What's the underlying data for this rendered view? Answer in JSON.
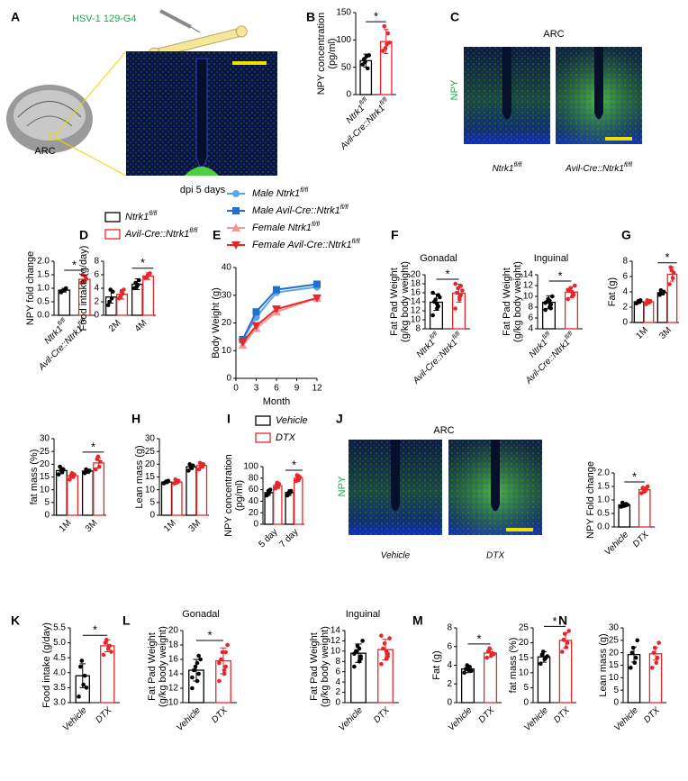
{
  "images": [
    {
      "panel": "A",
      "label": "HSV-1 129-G4",
      "region": "ARC",
      "caption": "dpi 5 days"
    },
    {
      "panel": "C",
      "title": "ARC",
      "stain": "NPY",
      "captions": [
        "Ntrk1fl/fl",
        "Avil-Cre::Ntrk1fl/fl"
      ]
    },
    {
      "panel": "J",
      "title": "ARC",
      "stain": "NPY",
      "captions": [
        "Vehicle",
        "DTX"
      ]
    }
  ],
  "chart_data": [
    {
      "type": "bar",
      "panel": "B",
      "ylabel": [
        "NPY concentration",
        "(pg/ml)"
      ],
      "categories": [
        "Ntrk1fl/fl",
        "Avil-Cre::Ntrk1fl/fl"
      ],
      "series": [
        {
          "colors": [
            "#000000",
            "#e8262a"
          ],
          "values": [
            62,
            97
          ],
          "errors": [
            12,
            22
          ],
          "points": [
            [
              55,
              70,
              48,
              65,
              60,
              72
            ],
            [
              80,
              92,
              112,
              125,
              85,
              95
            ]
          ]
        }
      ],
      "ylim": [
        0,
        150
      ],
      "yticks": [
        0,
        50,
        100,
        150
      ],
      "significance": "*"
    },
    {
      "type": "bar",
      "ylabel": [
        "NPY fold change"
      ],
      "categories": [
        "Ntrk1fl/fl",
        "Avil-Cre::Ntrk1fl/fl"
      ],
      "series": [
        {
          "colors": [
            "#000000",
            "#e8262a"
          ],
          "values": [
            0.93,
            1.33
          ],
          "errors": [
            0.07,
            0.15
          ],
          "points": [
            [
              0.85,
              0.95,
              1.0,
              0.9,
              0.92
            ],
            [
              1.2,
              1.45,
              1.35,
              1.5,
              1.25
            ]
          ]
        }
      ],
      "ylim": [
        0,
        2
      ],
      "yticks": [
        {
          "value": 0,
          "label": "0.0"
        },
        0.5,
        {
          "value": 1,
          "label": "1.0"
        },
        1.5,
        {
          "value": 2,
          "label": "2.0"
        }
      ],
      "significance": "*"
    },
    {
      "type": "bar",
      "panel": "D",
      "ylabel": [
        "Food intake (g/day)"
      ],
      "categories": [
        "2M",
        "4M"
      ],
      "series": [
        {
          "name": "Ntrk1fl/fl",
          "color": "#000000",
          "values": [
            2.7,
            4.6
          ],
          "errors": [
            0.9,
            0.8
          ],
          "points": [
            [
              1.5,
              2.5,
              3.5,
              2.0,
              3.8
            ],
            [
              4.0,
              4.5,
              5.2,
              4.8,
              4.2
            ]
          ]
        },
        {
          "name": "Avil-Cre::Ntrk1fl/fl",
          "color": "#e8262a",
          "values": [
            3.1,
            5.8
          ],
          "errors": [
            0.7,
            0.5
          ],
          "points": [
            [
              2.5,
              3.2,
              3.8,
              2.8,
              3.5
            ],
            [
              5.5,
              6.0,
              6.2,
              5.6,
              5.9
            ]
          ]
        }
      ],
      "ylim": [
        0,
        8
      ],
      "yticks": [
        0,
        2,
        4,
        6,
        8
      ],
      "significance": [
        null,
        "*"
      ]
    },
    {
      "type": "line",
      "panel": "E",
      "ylabel": [
        "Body Weight (g)"
      ],
      "xlabel": "Month",
      "x": [
        1,
        3,
        6,
        12
      ],
      "series": [
        {
          "name": "Male Ntrk1fl/fl",
          "color": "#5aa7e8",
          "marker": "circle",
          "values": [
            14,
            22,
            31,
            33
          ]
        },
        {
          "name": "Male Avil-Cre::Ntrk1fl/fl",
          "color": "#1f6fd1",
          "marker": "square",
          "values": [
            14,
            24,
            32,
            34
          ]
        },
        {
          "name": "Female Ntrk1fl/fl",
          "color": "#f29a9a",
          "marker": "triangle",
          "values": [
            12,
            18,
            24,
            29
          ]
        },
        {
          "name": "Female Avil-Cre::Ntrk1fl/fl",
          "color": "#e8262a",
          "marker": "triangle-down",
          "values": [
            13,
            19,
            25,
            29
          ]
        }
      ],
      "xlim": [
        0,
        12
      ],
      "xticks": [
        0,
        3,
        6,
        9,
        12
      ],
      "ylim": [
        0,
        40
      ],
      "yticks": [
        0,
        10,
        20,
        30,
        40
      ]
    },
    {
      "type": "bar",
      "panel": "F",
      "title": "Gonadal",
      "ylabel": [
        "Fat Pad Weight",
        "(g/kg body weight)"
      ],
      "categories": [
        "Ntrk1fl/fl",
        "Avil-Cre::Ntrk1fl/fl"
      ],
      "series": [
        {
          "colors": [
            "#000000",
            "#e8262a"
          ],
          "values": [
            13.9,
            15.9
          ],
          "errors": [
            1.8,
            2.0
          ],
          "points": [
            [
              11,
              12.5,
              13,
              14,
              14.5,
              15,
              16,
              13.5,
              15.5
            ],
            [
              12.5,
              14.5,
              15.5,
              16,
              17,
              16.5,
              18,
              15,
              17.5
            ]
          ]
        }
      ],
      "ylim": [
        8,
        20
      ],
      "yticks": [
        8,
        10,
        12,
        14,
        16,
        18,
        20
      ],
      "significance": "*"
    },
    {
      "type": "bar",
      "title": "Inguinal",
      "ylabel": [
        "Fat Pad Weight",
        "(g/kg body weight)"
      ],
      "categories": [
        "Ntrk1fl/fl",
        "Avil-Cre::Ntrk1fl/fl"
      ],
      "series": [
        {
          "colors": [
            "#000000",
            "#e8262a"
          ],
          "values": [
            8.9,
            10.8
          ],
          "errors": [
            1.2,
            1.0
          ],
          "points": [
            [
              7.5,
              8,
              8.5,
              9,
              9.5,
              10,
              8.8,
              9.2,
              7.8
            ],
            [
              9.5,
              10,
              10.5,
              11,
              11.5,
              12,
              11.2,
              10.8,
              10.2
            ]
          ]
        }
      ],
      "ylim": [
        4,
        14
      ],
      "yticks": [
        4,
        6,
        8,
        10,
        12,
        14
      ],
      "significance": "*"
    },
    {
      "type": "bar",
      "panel": "G",
      "ylabel": [
        "Fat (g)"
      ],
      "categories": [
        "1M",
        "3M"
      ],
      "series": [
        {
          "color": "#000000",
          "values": [
            2.7,
            3.9
          ],
          "errors": [
            0.2,
            0.3
          ],
          "points": [
            [
              2.5,
              2.7,
              2.9,
              2.6,
              2.8
            ],
            [
              3.6,
              3.8,
              4.0,
              4.2,
              3.9
            ]
          ]
        },
        {
          "color": "#e8262a",
          "values": [
            2.7,
            6.3
          ],
          "errors": [
            0.2,
            0.9
          ],
          "points": [
            [
              2.4,
              2.6,
              2.8,
              2.9,
              2.7
            ],
            [
              5,
              5.8,
              6.5,
              7.2,
              6.8
            ]
          ]
        }
      ],
      "ylim": [
        0,
        8
      ],
      "yticks": [
        0,
        2,
        4,
        6,
        8
      ],
      "significance": [
        null,
        "*"
      ]
    },
    {
      "type": "bar",
      "ylabel": [
        "fat mass (%)"
      ],
      "categories": [
        "1M",
        "3M"
      ],
      "series": [
        {
          "color": "#000000",
          "values": [
            17.5,
            17.3
          ],
          "errors": [
            1.2,
            0.6
          ],
          "points": [
            [
              16,
              17,
              18,
              19,
              17.5
            ],
            [
              16.5,
              17,
              17.5,
              18,
              17.2
            ]
          ]
        },
        {
          "color": "#e8262a",
          "values": [
            15.5,
            20.5
          ],
          "errors": [
            1.0,
            2.0
          ],
          "points": [
            [
              14,
              15,
              16,
              15.5,
              16.5
            ],
            [
              18,
              19,
              21,
              22,
              23
            ]
          ]
        }
      ],
      "ylim": [
        0,
        30
      ],
      "yticks": [
        0,
        5,
        10,
        15,
        20,
        25,
        30
      ],
      "significance": [
        null,
        "*"
      ]
    },
    {
      "type": "bar",
      "panel": "H",
      "ylabel": [
        "Lean mass (g)"
      ],
      "categories": [
        "1M",
        "3M"
      ],
      "series": [
        {
          "color": "#000000",
          "values": [
            13,
            19
          ],
          "errors": [
            0.4,
            1.0
          ],
          "points": [
            [
              12.5,
              13,
              13.5,
              12.8,
              13.2
            ],
            [
              17.5,
              18.5,
              19.5,
              20,
              19
            ]
          ]
        },
        {
          "color": "#e8262a",
          "values": [
            13,
            19.5
          ],
          "errors": [
            0.6,
            1.0
          ],
          "points": [
            [
              12.5,
              13,
              13.5,
              14,
              12.8
            ],
            [
              18,
              19,
              20,
              20.5,
              19.2
            ]
          ]
        }
      ],
      "ylim": [
        0,
        30
      ],
      "yticks": [
        0,
        5,
        10,
        15,
        20,
        25,
        30
      ]
    },
    {
      "type": "bar",
      "panel": "I",
      "ylabel": [
        "NPY concentration",
        "(pg/ml)"
      ],
      "categories": [
        "5 day",
        "7 day"
      ],
      "series": [
        {
          "name": "Vehicle",
          "color": "#000000",
          "values": [
            55,
            55
          ],
          "errors": [
            5,
            5
          ],
          "points": [
            [
              50,
              55,
              60,
              52,
              58
            ],
            [
              50,
              55,
              58,
              52,
              56
            ]
          ]
        },
        {
          "name": "DTX",
          "color": "#e8262a",
          "values": [
            67,
            80
          ],
          "errors": [
            5,
            6
          ],
          "points": [
            [
              62,
              65,
              70,
              68,
              72
            ],
            [
              75,
              78,
              82,
              85,
              80
            ]
          ]
        }
      ],
      "ylim": [
        0,
        100
      ],
      "yticks": [
        0,
        20,
        40,
        60,
        80,
        100
      ],
      "significance": [
        null,
        "*"
      ]
    },
    {
      "type": "bar",
      "ylabel": [
        "NPY Fold change"
      ],
      "categories": [
        "Vehicle",
        "DTX"
      ],
      "series": [
        {
          "colors": [
            "#000000",
            "#e8262a"
          ],
          "values": [
            0.82,
            1.38
          ],
          "errors": [
            0.08,
            0.1
          ],
          "points": [
            [
              0.75,
              0.8,
              0.85,
              0.9,
              0.78,
              0.82
            ],
            [
              1.25,
              1.35,
              1.4,
              1.45,
              1.3,
              1.5
            ]
          ]
        }
      ],
      "ylim": [
        0,
        2
      ],
      "yticks": [
        {
          "value": 0,
          "label": "0.0"
        },
        0.5,
        {
          "value": 1,
          "label": "1.0"
        },
        1.5,
        {
          "value": 2,
          "label": "2.0"
        }
      ],
      "significance": "*"
    },
    {
      "type": "bar",
      "panel": "K",
      "ylabel": [
        "Food intake (g/day)"
      ],
      "categories": [
        "Vehicle",
        "DTX"
      ],
      "series": [
        {
          "colors": [
            "#000000",
            "#e8262a"
          ],
          "values": [
            3.9,
            4.9
          ],
          "errors": [
            0.4,
            0.2
          ],
          "points": [
            [
              3.2,
              3.6,
              3.9,
              4.2,
              4.4,
              3.5
            ],
            [
              4.6,
              4.8,
              4.9,
              5.0,
              5.1,
              4.7
            ]
          ]
        }
      ],
      "ylim": [
        3,
        5.5
      ],
      "yticks": [
        {
          "value": 3,
          "label": "3.0"
        },
        3.5,
        {
          "value": 4,
          "label": "4.0"
        },
        4.5,
        {
          "value": 5,
          "label": "5.0"
        },
        5.5
      ],
      "significance": "*"
    },
    {
      "type": "bar",
      "panel": "L",
      "title": "Gonadal",
      "ylabel": [
        "Fat Pad Weight",
        "(g/kg body weight)"
      ],
      "categories": [
        "Vehicle",
        "DTX"
      ],
      "series": [
        {
          "colors": [
            "#000000",
            "#e8262a"
          ],
          "values": [
            14.5,
            15.8
          ],
          "errors": [
            1.5,
            1.8
          ],
          "points": [
            [
              12,
              13,
              14,
              14.5,
              15,
              16,
              13.5,
              15.5,
              16.5
            ],
            [
              13,
              14,
              15,
              16,
              17,
              18,
              15.5,
              14.5,
              17
            ]
          ]
        }
      ],
      "ylim": [
        10,
        20
      ],
      "yticks": [
        10,
        12,
        14,
        16,
        18,
        20
      ],
      "significance": "*"
    },
    {
      "type": "bar",
      "title": "Inguinal",
      "ylabel": [
        "Fat Pad Weight",
        "(g/kg body weight)"
      ],
      "categories": [
        "Vehicle",
        "DTX"
      ],
      "series": [
        {
          "colors": [
            "#000000",
            "#e8262a"
          ],
          "values": [
            9.6,
            10.3
          ],
          "errors": [
            1.8,
            2.0
          ],
          "points": [
            [
              7,
              8,
              9,
              10,
              11,
              12,
              9.5,
              10.5,
              8.5
            ],
            [
              7.5,
              8.5,
              9.5,
              10.5,
              11.5,
              12.5,
              13,
              10,
              9
            ]
          ]
        }
      ],
      "ylim": [
        0,
        14
      ],
      "yticks": [
        0,
        2,
        4,
        6,
        8,
        10,
        12,
        14
      ]
    },
    {
      "type": "bar",
      "panel": "M",
      "ylabel": [
        "Fat (g)"
      ],
      "categories": [
        "Vehicle",
        "DTX"
      ],
      "series": [
        {
          "colors": [
            "#000000",
            "#e8262a"
          ],
          "values": [
            3.6,
            5.3
          ],
          "errors": [
            0.4,
            0.4
          ],
          "points": [
            [
              3.2,
              3.5,
              3.8,
              3.6,
              4.0,
              3.4
            ],
            [
              4.8,
              5.0,
              5.3,
              5.5,
              5.8,
              5.2
            ]
          ]
        }
      ],
      "ylim": [
        0,
        8
      ],
      "yticks": [
        0,
        2,
        4,
        6,
        8
      ],
      "significance": "*"
    },
    {
      "type": "bar",
      "ylabel": [
        "fat mass (%)"
      ],
      "categories": [
        "Vehicle",
        "DTX"
      ],
      "series": [
        {
          "colors": [
            "#000000",
            "#e8262a"
          ],
          "values": [
            15.3,
            20.8
          ],
          "errors": [
            1.8,
            2.5
          ],
          "points": [
            [
              13,
              14.5,
              15,
              16,
              17,
              15.5
            ],
            [
              17,
              18.5,
              20,
              21,
              23,
              24
            ]
          ]
        }
      ],
      "ylim": [
        0,
        25
      ],
      "yticks": [
        0,
        5,
        10,
        15,
        20,
        25
      ],
      "significance": "*"
    },
    {
      "type": "bar",
      "panel": "N",
      "ylabel": [
        "Lean mass (g)"
      ],
      "categories": [
        "Vehicle",
        "DTX"
      ],
      "series": [
        {
          "colors": [
            "#000000",
            "#e8262a"
          ],
          "values": [
            19.3,
            19.6
          ],
          "errors": [
            3,
            2.5
          ],
          "points": [
            [
              14,
              16,
              18,
              20,
              22,
              25
            ],
            [
              14,
              16,
              18,
              20,
              22,
              24
            ]
          ]
        }
      ],
      "ylim": [
        0,
        30
      ],
      "yticks": [
        0,
        5,
        10,
        15,
        20,
        25,
        30
      ]
    }
  ]
}
